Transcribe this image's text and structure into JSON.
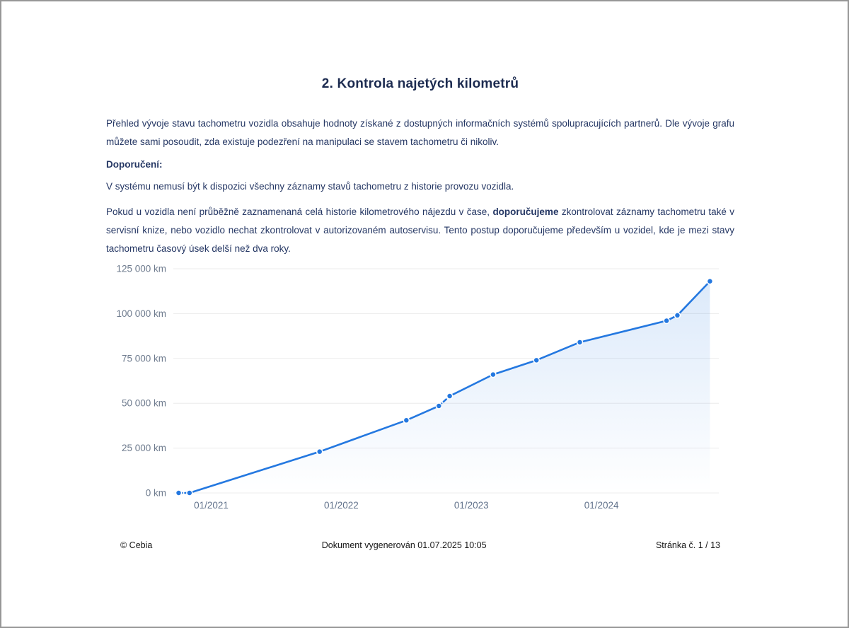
{
  "page": {
    "title": "2. Kontrola najetých kilometrů",
    "paragraphs": {
      "intro": "Přehled vývoje stavu tachometru vozidla obsahuje hodnoty získané z dostupných informačních systémů spolupracujících partnerů. Dle vývoje grafu můžete sami posoudit, zda existuje podezření na manipulaci se stavem tachometru či nikoliv.",
      "recommendation_heading": "Doporučení:",
      "note": "V systému nemusí být k dispozici všechny záznamy stavů tachometru z historie provozu vozidla.",
      "advice_before": "Pokud u vozidla není průběžně zaznamenaná celá historie kilometrového nájezdu v čase, ",
      "advice_bold": "doporučujeme",
      "advice_after": " zkontrolovat záznamy tachometru také v servisní knize, nebo vozidlo nechat zkontrolovat v autorizovaném autoservisu. Tento postup doporučujeme především u vozidel, kde je mezi stavy tachometru časový úsek delší než dva roky."
    },
    "footer": {
      "copyright": "© Cebia",
      "generated": "Dokument vygenerován 01.07.2025 10:05",
      "page_number": "Stránka č. 1 / 13"
    }
  },
  "chart_data": {
    "type": "line",
    "ylabel": "",
    "xlabel": "",
    "title": "",
    "series": [
      {
        "points": [
          {
            "date": "10/2020",
            "km": 0
          },
          {
            "date": "11/2020",
            "km": 0
          },
          {
            "date": "11/2021",
            "km": 23000
          },
          {
            "date": "07/2022",
            "km": 40500
          },
          {
            "date": "10/2022",
            "km": 48500
          },
          {
            "date": "11/2022",
            "km": 54000
          },
          {
            "date": "03/2023",
            "km": 66000
          },
          {
            "date": "07/2023",
            "km": 74000
          },
          {
            "date": "11/2023",
            "km": 84000
          },
          {
            "date": "07/2024",
            "km": 96000
          },
          {
            "date": "08/2024",
            "km": 99000
          },
          {
            "date": "11/2024",
            "km": 118000
          }
        ]
      }
    ],
    "dashed_segment_start_indices": [
      0,
      4
    ],
    "y_ticks": [
      0,
      25000,
      50000,
      75000,
      100000,
      125000
    ],
    "y_tick_unit": "km",
    "x_ticks": [
      "01/2021",
      "01/2022",
      "01/2023",
      "01/2024"
    ],
    "ylim": [
      0,
      125000
    ],
    "xlim_years": [
      2020.72,
      2024.88
    ],
    "grid": true,
    "legend": "none",
    "line_color": "#2478e0",
    "grid_color": "#ececec",
    "axis_label_color": "#6e7b8e",
    "x_label_color": "#62738c",
    "area_gradient_top": "rgba(36,120,224,0.16)",
    "area_gradient_bottom": "rgba(36,120,224,0.0)"
  }
}
